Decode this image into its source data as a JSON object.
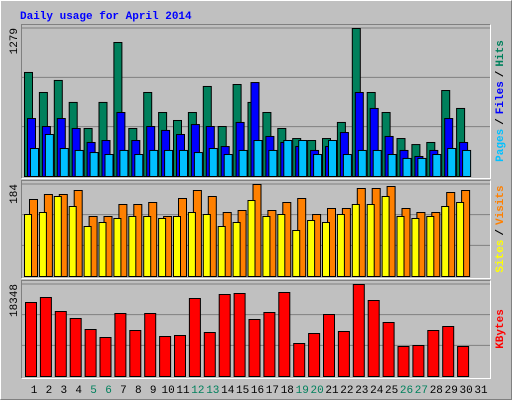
{
  "chart_data": [
    {
      "type": "bar",
      "title": "Daily usage for April 2014",
      "title_color": "#0000ff",
      "ylim": [
        0,
        1279
      ],
      "yticks": [
        1279
      ],
      "grid_divisions": 3,
      "legend_separator": "/",
      "series": [
        {
          "name": "Hits",
          "color": "#00805c",
          "values": [
            899,
            726,
            830,
            640,
            415,
            640,
            1158,
            415,
            726,
            553,
            484,
            553,
            778,
            432,
            795,
            640,
            553,
            415,
            328,
            311,
            328,
            467,
            1279,
            726,
            553,
            328,
            276,
            294,
            743,
            588,
            null
          ]
        },
        {
          "name": "Files",
          "color": "#0000ff",
          "values": [
            501,
            432,
            501,
            415,
            294,
            311,
            553,
            311,
            432,
            398,
            363,
            449,
            432,
            259,
            467,
            812,
            346,
            294,
            259,
            225,
            259,
            380,
            726,
            588,
            346,
            225,
            173,
            225,
            501,
            294,
            null
          ]
        },
        {
          "name": "Pages",
          "color": "#00c0ff",
          "values": [
            242,
            363,
            242,
            225,
            207,
            190,
            225,
            190,
            225,
            225,
            225,
            207,
            242,
            190,
            225,
            311,
            225,
            311,
            311,
            190,
            311,
            190,
            225,
            225,
            190,
            156,
            156,
            190,
            242,
            225,
            null
          ]
        }
      ]
    },
    {
      "type": "bar",
      "ylim": [
        0,
        184
      ],
      "yticks": [
        184
      ],
      "grid_divisions": 3,
      "legend_separator": "/",
      "series": [
        {
          "name": "Visits",
          "color": "#ff8000",
          "values": [
            154,
            164,
            164,
            172,
            120,
            120,
            144,
            144,
            148,
            120,
            156,
            172,
            160,
            128,
            132,
            184,
            132,
            148,
            156,
            124,
            136,
            136,
            176,
            176,
            180,
            136,
            128,
            128,
            168,
            172,
            null
          ]
        },
        {
          "name": "Sites",
          "color": "#ffff00",
          "values": [
            124,
            128,
            160,
            140,
            100,
            108,
            116,
            120,
            120,
            116,
            120,
            128,
            124,
            100,
            108,
            152,
            120,
            124,
            92,
            112,
            108,
            124,
            144,
            144,
            160,
            120,
            116,
            120,
            140,
            148,
            null
          ]
        }
      ]
    },
    {
      "type": "bar",
      "ylim": [
        0,
        18348
      ],
      "yticks": [
        18348
      ],
      "grid_divisions": 3,
      "categories": [
        "1",
        "2",
        "3",
        "4",
        "5",
        "6",
        "7",
        "8",
        "9",
        "10",
        "11",
        "12",
        "13",
        "14",
        "15",
        "16",
        "17",
        "18",
        "19",
        "20",
        "21",
        "22",
        "23",
        "24",
        "25",
        "26",
        "27",
        "28",
        "29",
        "30",
        "31"
      ],
      "category_colors": [
        "#000000",
        "#000000",
        "#000000",
        "#000000",
        "#00805c",
        "#00805c",
        "#000000",
        "#000000",
        "#000000",
        "#000000",
        "#000000",
        "#00805c",
        "#00805c",
        "#000000",
        "#000000",
        "#000000",
        "#000000",
        "#000000",
        "#00805c",
        "#00805c",
        "#000000",
        "#000000",
        "#000000",
        "#000000",
        "#000000",
        "#00805c",
        "#00805c",
        "#000000",
        "#000000",
        "#000000",
        "#000000"
      ],
      "series": [
        {
          "name": "KBytes",
          "color": "#ff0000",
          "values": [
            14758,
            15756,
            12963,
            11567,
            9373,
            7778,
            12564,
            9174,
            12564,
            7977,
            8177,
            15556,
            8775,
            16354,
            16553,
            11368,
            12764,
            16753,
            6581,
            8576,
            12365,
            8975,
            18348,
            15157,
            10770,
            5983,
            6183,
            9174,
            9972,
            5983,
            null
          ]
        }
      ]
    }
  ]
}
